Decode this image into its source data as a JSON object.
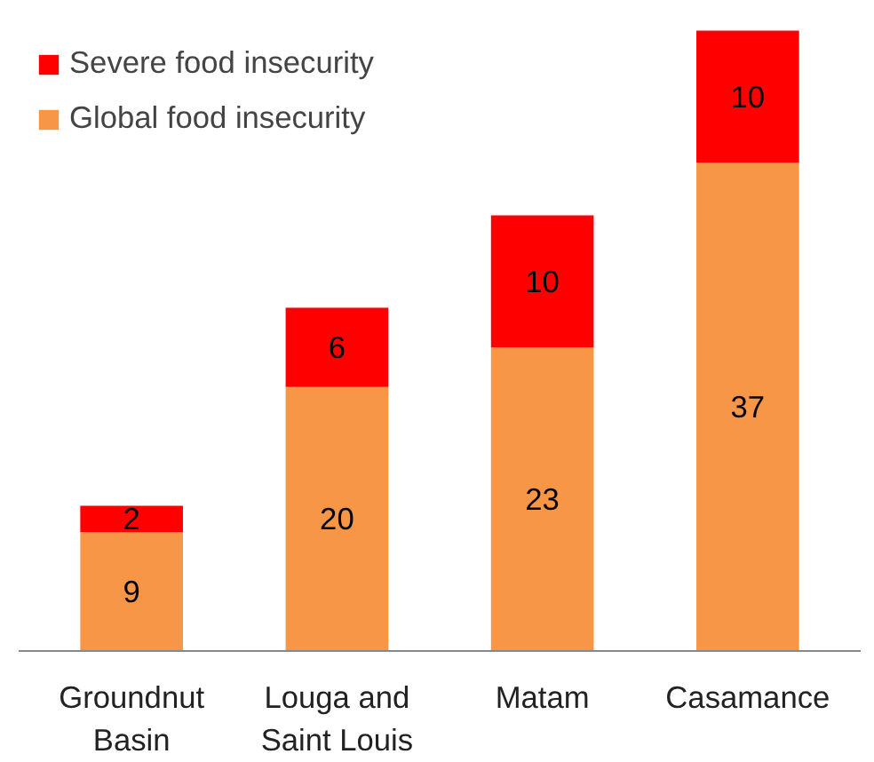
{
  "chart_data": {
    "type": "bar",
    "stacked": true,
    "categories": [
      "Groundnut\nBasin",
      "Louga and\nSaint Louis",
      "Matam",
      "Casamance"
    ],
    "series": [
      {
        "name": "Global food insecurity",
        "color": "#f79646",
        "values": [
          9,
          20,
          23,
          37
        ]
      },
      {
        "name": "Severe food insecurity",
        "color": "#ff0000",
        "values": [
          2,
          6,
          10,
          10
        ]
      }
    ],
    "data_labels": true,
    "legend": "top left",
    "grid": false
  }
}
